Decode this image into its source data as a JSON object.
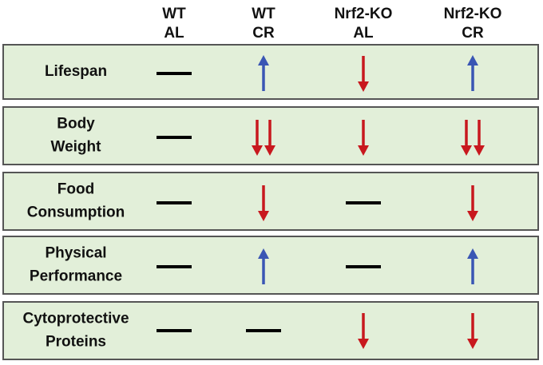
{
  "header": {
    "columns": [
      [
        "WT",
        "AL"
      ],
      [
        "WT",
        "CR"
      ],
      [
        "Nrf2-KO",
        "AL"
      ],
      [
        "Nrf2-KO",
        "CR"
      ]
    ]
  },
  "rows": [
    {
      "label": [
        "Lifespan"
      ]
    },
    {
      "label": [
        "Body",
        "Weight"
      ]
    },
    {
      "label": [
        "Food",
        "Consumption"
      ]
    },
    {
      "label": [
        "Physical",
        "Performance"
      ]
    },
    {
      "label": [
        "Cytoprotective",
        "Proteins"
      ]
    }
  ]
}
